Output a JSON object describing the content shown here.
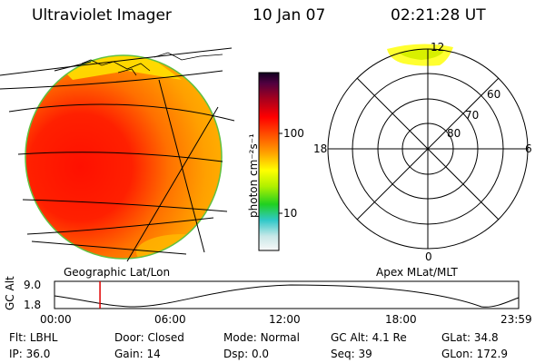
{
  "header": {
    "title": "Ultraviolet Imager",
    "date": "10 Jan 07",
    "time": "02:21:28 UT"
  },
  "colorbar": {
    "unit_label": "photon cm⁻²s⁻¹",
    "ticks": [
      "100",
      "10"
    ],
    "colors": [
      "#f8f8f8",
      "#c8e8e8",
      "#30c8c8",
      "#20d020",
      "#b0f000",
      "#ffff00",
      "#ffd000",
      "#ffa000",
      "#ff6000",
      "#ff0000",
      "#d00010",
      "#900020",
      "#500040",
      "#100020"
    ]
  },
  "panels": {
    "left_label": "Geographic Lat/Lon",
    "right_label": "Apex MLat/MLT"
  },
  "polar": {
    "mlt_labels": {
      "top": "12",
      "left": "18",
      "right": "6",
      "bottom": "0"
    },
    "lat_labels": [
      "60",
      "70",
      "80"
    ]
  },
  "timeline": {
    "ylabel": "GC Alt",
    "y_ticks": [
      "9.0",
      "1.8"
    ],
    "x_ticks": [
      "00:00",
      "06:00",
      "12:00",
      "18:00",
      "23:59"
    ],
    "current_time_fraction": 0.098
  },
  "info": {
    "row1": [
      {
        "key": "Flt:",
        "value": "LBHL"
      },
      {
        "key": "Door:",
        "value": "Closed"
      },
      {
        "key": "Mode:",
        "value": "Normal"
      },
      {
        "key": "GC Alt:",
        "value": "4.1 Re"
      },
      {
        "key": "GLat:",
        "value": "34.8"
      }
    ],
    "row2": [
      {
        "key": "IP:",
        "value": "36.0"
      },
      {
        "key": "Gain:",
        "value": "14"
      },
      {
        "key": "Dsp:",
        "value": "0.0"
      },
      {
        "key": "Seq:",
        "value": "39"
      },
      {
        "key": "GLon:",
        "value": "172.9"
      }
    ]
  }
}
